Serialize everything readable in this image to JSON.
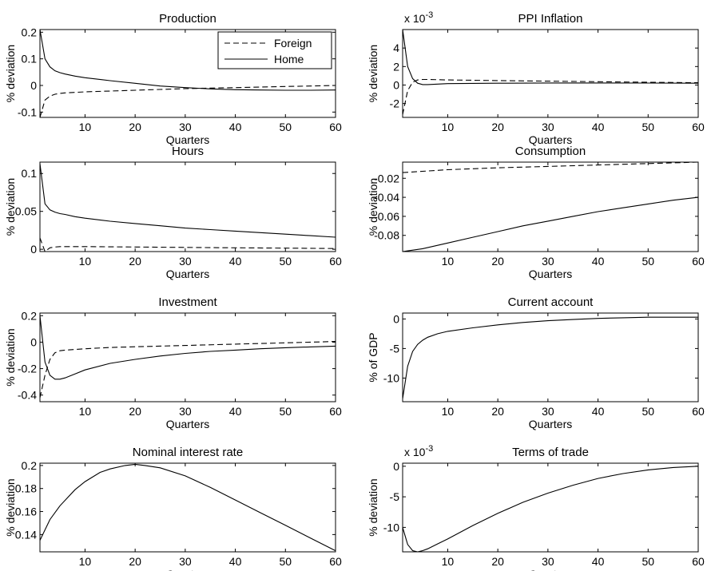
{
  "chart_data": [
    {
      "type": "line",
      "title": "Production",
      "xlabel": "Quarters",
      "ylabel": "% deviation",
      "xlim": [
        1,
        60
      ],
      "ylim": [
        -0.12,
        0.21
      ],
      "xticks": [
        10,
        20,
        30,
        40,
        50,
        60
      ],
      "yticks": [
        -0.1,
        0,
        0.1,
        0.2
      ],
      "yticklabels": [
        "-0.1",
        "0",
        "0.1",
        "0.2"
      ],
      "legend": {
        "location": "top-right",
        "entries": [
          "Foreign",
          "Home"
        ]
      },
      "series": [
        {
          "name": "Foreign",
          "style": "dashed",
          "x": [
            1,
            2,
            3,
            4,
            5,
            6,
            8,
            10,
            15,
            20,
            25,
            30,
            35,
            40,
            45,
            50,
            55,
            60
          ],
          "y": [
            -0.12,
            -0.055,
            -0.04,
            -0.033,
            -0.03,
            -0.028,
            -0.026,
            -0.024,
            -0.021,
            -0.018,
            -0.015,
            -0.012,
            -0.01,
            -0.008,
            -0.006,
            -0.004,
            -0.002,
            0.0
          ]
        },
        {
          "name": "Home",
          "style": "solid",
          "x": [
            1,
            2,
            3,
            4,
            5,
            6,
            8,
            10,
            15,
            20,
            25,
            30,
            35,
            40,
            45,
            50,
            55,
            60
          ],
          "y": [
            0.21,
            0.1,
            0.07,
            0.055,
            0.048,
            0.043,
            0.035,
            0.029,
            0.018,
            0.008,
            -0.002,
            -0.008,
            -0.013,
            -0.016,
            -0.017,
            -0.018,
            -0.018,
            -0.017
          ]
        }
      ]
    },
    {
      "type": "line",
      "title": "PPI Inflation",
      "xlabel": "Quarters",
      "ylabel": "% deviation",
      "exponent_label": "x 10",
      "exponent_power": "-3",
      "xlim": [
        1,
        60
      ],
      "ylim": [
        -3.5,
        6
      ],
      "xticks": [
        10,
        20,
        30,
        40,
        50,
        60
      ],
      "yticks": [
        -2,
        0,
        2,
        4
      ],
      "yticklabels": [
        "-2",
        "0",
        "2",
        "4"
      ],
      "series": [
        {
          "style": "dashed",
          "x": [
            1,
            2,
            3,
            4,
            5,
            6,
            8,
            10,
            20,
            30,
            40,
            50,
            60
          ],
          "y": [
            -3.2,
            -0.6,
            0.3,
            0.55,
            0.6,
            0.6,
            0.58,
            0.55,
            0.48,
            0.42,
            0.36,
            0.3,
            0.25
          ]
        },
        {
          "style": "solid",
          "x": [
            1,
            2,
            3,
            4,
            5,
            6,
            8,
            10,
            20,
            30,
            40,
            50,
            60
          ],
          "y": [
            6.0,
            2.0,
            0.7,
            0.2,
            0.05,
            0.05,
            0.1,
            0.15,
            0.2,
            0.22,
            0.22,
            0.21,
            0.2
          ]
        }
      ]
    },
    {
      "type": "line",
      "title": "Hours",
      "xlabel": "Quarters",
      "ylabel": "% deviation",
      "xlim": [
        1,
        60
      ],
      "ylim": [
        -0.003,
        0.115
      ],
      "xticks": [
        10,
        20,
        30,
        40,
        50,
        60
      ],
      "yticks": [
        0,
        0.05,
        0.1
      ],
      "yticklabels": [
        "0",
        "0.05",
        "0.1"
      ],
      "series": [
        {
          "style": "dashed",
          "x": [
            1,
            2,
            3,
            4,
            5,
            6,
            10,
            20,
            30,
            40,
            50,
            60
          ],
          "y": [
            0.015,
            -0.003,
            0.002,
            0.003,
            0.0035,
            0.0035,
            0.0035,
            0.003,
            0.0025,
            0.002,
            0.0015,
            0.001
          ]
        },
        {
          "style": "solid",
          "x": [
            1,
            2,
            3,
            4,
            5,
            6,
            8,
            10,
            15,
            20,
            25,
            30,
            35,
            40,
            45,
            50,
            55,
            60
          ],
          "y": [
            0.113,
            0.06,
            0.052,
            0.049,
            0.047,
            0.046,
            0.043,
            0.041,
            0.037,
            0.034,
            0.031,
            0.028,
            0.026,
            0.024,
            0.022,
            0.02,
            0.018,
            0.016
          ]
        }
      ]
    },
    {
      "type": "line",
      "title": "Consumption",
      "xlabel": "Quarters",
      "ylabel": "% deviation",
      "xlim": [
        1,
        60
      ],
      "ylim": [
        -0.097,
        -0.003
      ],
      "xticks": [
        10,
        20,
        30,
        40,
        50,
        60
      ],
      "yticks": [
        -0.08,
        -0.06,
        -0.04,
        -0.02
      ],
      "yticklabels": [
        "-0.08",
        "-0.06",
        "-0.04",
        "-0.02"
      ],
      "series": [
        {
          "style": "dashed",
          "x": [
            1,
            10,
            20,
            30,
            40,
            50,
            60
          ],
          "y": [
            -0.014,
            -0.011,
            -0.009,
            -0.0075,
            -0.006,
            -0.0045,
            -0.003
          ]
        },
        {
          "style": "solid",
          "x": [
            1,
            5,
            10,
            15,
            20,
            25,
            30,
            35,
            40,
            45,
            50,
            55,
            60
          ],
          "y": [
            -0.097,
            -0.094,
            -0.088,
            -0.082,
            -0.076,
            -0.07,
            -0.065,
            -0.06,
            -0.055,
            -0.051,
            -0.047,
            -0.043,
            -0.04
          ]
        }
      ]
    },
    {
      "type": "line",
      "title": "Investment",
      "xlabel": "Quarters",
      "ylabel": "% deviation",
      "xlim": [
        1,
        60
      ],
      "ylim": [
        -0.45,
        0.22
      ],
      "xticks": [
        10,
        20,
        30,
        40,
        50,
        60
      ],
      "yticks": [
        -0.4,
        -0.2,
        0,
        0.2
      ],
      "yticklabels": [
        "-0.4",
        "-0.2",
        "0",
        "0.2"
      ],
      "series": [
        {
          "style": "dashed",
          "x": [
            1,
            2,
            3,
            4,
            5,
            6,
            8,
            10,
            15,
            20,
            30,
            40,
            50,
            60
          ],
          "y": [
            -0.42,
            -0.25,
            -0.13,
            -0.08,
            -0.065,
            -0.06,
            -0.055,
            -0.05,
            -0.04,
            -0.035,
            -0.025,
            -0.015,
            -0.005,
            0.005
          ]
        },
        {
          "style": "solid",
          "x": [
            1,
            2,
            3,
            4,
            5,
            6,
            8,
            10,
            15,
            20,
            25,
            30,
            35,
            40,
            45,
            50,
            55,
            60
          ],
          "y": [
            0.2,
            -0.15,
            -0.25,
            -0.28,
            -0.28,
            -0.27,
            -0.24,
            -0.21,
            -0.16,
            -0.13,
            -0.105,
            -0.085,
            -0.07,
            -0.06,
            -0.05,
            -0.042,
            -0.036,
            -0.03
          ]
        }
      ]
    },
    {
      "type": "line",
      "title": "Current account",
      "xlabel": "Quarters",
      "ylabel": "% of GDP",
      "xlim": [
        1,
        60
      ],
      "ylim": [
        -14,
        1
      ],
      "xticks": [
        10,
        20,
        30,
        40,
        50,
        60
      ],
      "yticks": [
        -10,
        -5,
        0
      ],
      "yticklabels": [
        "-10",
        "-5",
        "0"
      ],
      "series": [
        {
          "style": "solid",
          "x": [
            1,
            2,
            3,
            4,
            5,
            6,
            8,
            10,
            15,
            20,
            25,
            30,
            35,
            40,
            45,
            50,
            55,
            60
          ],
          "y": [
            -13.5,
            -8.0,
            -5.5,
            -4.3,
            -3.6,
            -3.1,
            -2.5,
            -2.1,
            -1.5,
            -1.0,
            -0.6,
            -0.3,
            -0.1,
            0.1,
            0.2,
            0.3,
            0.3,
            0.3
          ]
        }
      ]
    },
    {
      "type": "line",
      "title": "Nominal interest rate",
      "xlabel": "Quarters",
      "ylabel": "% deviation",
      "xlim": [
        1,
        60
      ],
      "ylim": [
        0.125,
        0.202
      ],
      "xticks": [
        10,
        20,
        30,
        40,
        50,
        60
      ],
      "yticks": [
        0.14,
        0.16,
        0.18,
        0.2
      ],
      "yticklabels": [
        "0.14",
        "0.16",
        "0.18",
        "0.2"
      ],
      "series": [
        {
          "style": "solid",
          "x": [
            1,
            3,
            5,
            8,
            10,
            13,
            15,
            18,
            20,
            22,
            25,
            30,
            35,
            40,
            45,
            50,
            55,
            60
          ],
          "y": [
            0.135,
            0.153,
            0.165,
            0.179,
            0.186,
            0.194,
            0.197,
            0.2,
            0.201,
            0.2,
            0.198,
            0.191,
            0.181,
            0.17,
            0.159,
            0.148,
            0.137,
            0.126
          ]
        }
      ]
    },
    {
      "type": "line",
      "title": "Terms of trade",
      "xlabel": "Quarters",
      "ylabel": "% deviation",
      "exponent_label": "x 10",
      "exponent_power": "-3",
      "xlim": [
        1,
        60
      ],
      "ylim": [
        -14,
        0.5
      ],
      "xticks": [
        10,
        20,
        30,
        40,
        50,
        60
      ],
      "yticks": [
        -10,
        -5,
        0
      ],
      "yticklabels": [
        "-10",
        "-5",
        "0"
      ],
      "series": [
        {
          "style": "solid",
          "x": [
            1,
            2,
            3,
            4,
            5,
            6,
            8,
            10,
            15,
            20,
            25,
            30,
            35,
            40,
            45,
            50,
            55,
            60
          ],
          "y": [
            -10.0,
            -12.8,
            -13.8,
            -14.0,
            -13.8,
            -13.5,
            -12.7,
            -11.9,
            -9.7,
            -7.7,
            -5.9,
            -4.4,
            -3.1,
            -2.0,
            -1.2,
            -0.6,
            -0.2,
            0.0
          ]
        }
      ]
    }
  ]
}
